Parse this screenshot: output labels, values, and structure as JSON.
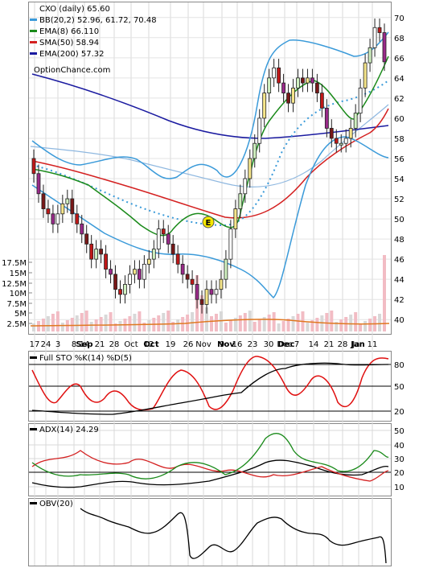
{
  "chart_data": {
    "type": "stock-chart",
    "symbol_line": "CXO (daily) 65.60",
    "watermark": "OptionChance.com",
    "x_axis_labels": [
      "17",
      "24",
      "3",
      "8",
      "14",
      "21",
      "28",
      "Oct",
      "12",
      "19",
      "26",
      "Nov",
      "9",
      "16",
      "23",
      "30",
      "Dec",
      "7",
      "14",
      "21",
      "28",
      "Jan",
      "11"
    ],
    "x_axis_bold": [
      "Sep",
      "Oct",
      "Nov",
      "Dec",
      "Jan"
    ],
    "price_panel": {
      "y_ticks": [
        40,
        42,
        44,
        46,
        48,
        50,
        52,
        54,
        56,
        58,
        60,
        62,
        64,
        66,
        68,
        70
      ],
      "ylim": [
        38.5,
        71.5
      ],
      "legend": [
        {
          "label": "BB(20,2) 52.96, 61.72, 70.48",
          "color": "#3a9ad9"
        },
        {
          "label": "EMA(8) 66.110",
          "color": "#1a8a1a"
        },
        {
          "label": "SMA(50) 58.94",
          "color": "#d42020"
        },
        {
          "label": "EMA(200) 57.32",
          "color": "#1a1aa0"
        }
      ],
      "volume_ticks": [
        "17.5M",
        "15M",
        "12.5M",
        "10M",
        "7.5M",
        "5M",
        "2.5M"
      ],
      "closes": [
        54.5,
        52.5,
        51.0,
        50.5,
        49.5,
        50.5,
        51.5,
        52.0,
        50.5,
        49.5,
        48.5,
        47.5,
        46.0,
        47.0,
        46.5,
        45.0,
        44.5,
        43.0,
        42.5,
        43.5,
        44.5,
        45.0,
        44.0,
        45.5,
        46.0,
        47.0,
        49.0,
        48.5,
        47.5,
        46.5,
        45.5,
        44.5,
        44.0,
        43.5,
        42.0,
        41.5,
        43.0,
        42.5,
        43.0,
        44.0,
        46.0,
        49.0,
        51.0,
        52.5,
        54.0,
        56.0,
        57.5,
        60.0,
        62.5,
        64.0,
        65.0,
        63.5,
        62.5,
        61.5,
        63.0,
        64.0,
        63.5,
        64.0,
        63.5,
        62.5,
        61.0,
        59.0,
        58.0,
        57.5,
        57.5,
        58.0,
        59.0,
        60.5,
        63.0,
        65.5,
        67.0,
        69.0,
        68.5,
        65.6
      ]
    },
    "stochastic": {
      "title": "Full STO %K(14) %D(5)",
      "y_ticks": [
        20,
        50,
        80
      ],
      "ylim": [
        0,
        100
      ]
    },
    "adx": {
      "title": "ADX(14) 24.29",
      "y_ticks": [
        10,
        20,
        30,
        40,
        50
      ],
      "ylim": [
        5,
        53
      ]
    },
    "obv": {
      "title": "OBV(20)"
    }
  }
}
